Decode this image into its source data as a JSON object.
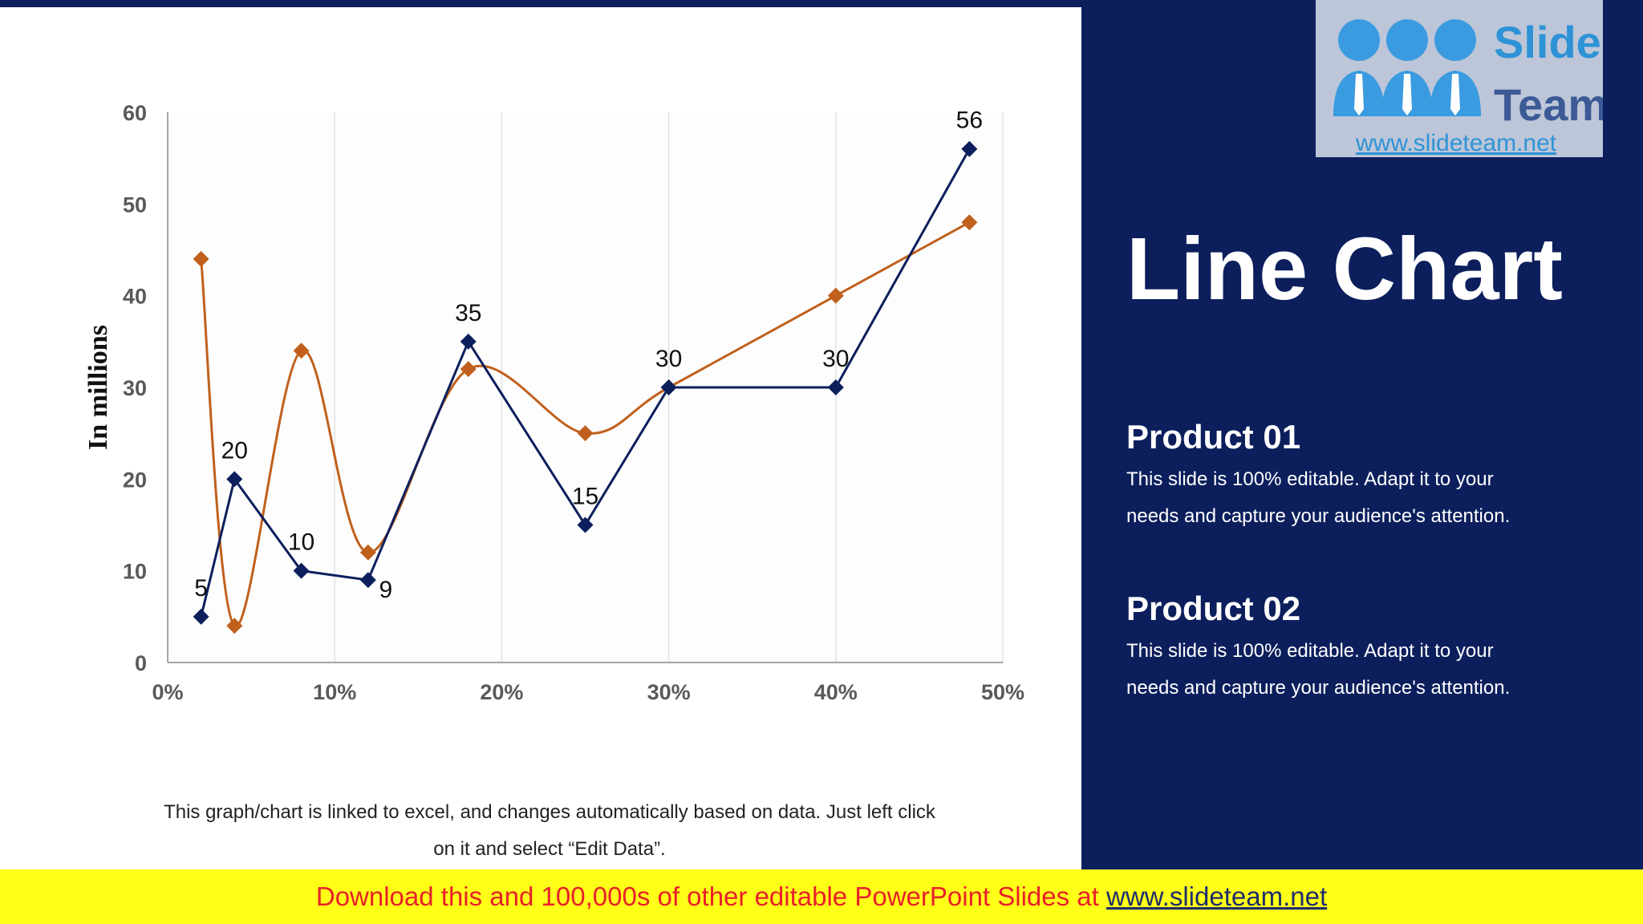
{
  "slide": {
    "title": "Line Chart",
    "note_line1": "This graph/chart is linked to excel, and changes automatically based on data. Just left click",
    "note_line2": "on it and select “Edit Data”.",
    "footer_text": "Download this and 100,000s of other editable PowerPoint Slides at ",
    "footer_link": "www.slideteam.net"
  },
  "logo": {
    "word1": "Slide",
    "word2": "Team",
    "url": "www.slideteam.net"
  },
  "products": [
    {
      "title": "Product 01",
      "line1": "This slide is 100% editable. Adapt it to your",
      "line2": "needs and capture your audience's attention."
    },
    {
      "title": "Product 02",
      "line1": "This slide is 100% editable. Adapt it to your",
      "line2": "needs and capture your audience's attention."
    }
  ],
  "colors": {
    "navy": "#0c1f5c",
    "orange": "#c0601c",
    "yellow": "#ffff18",
    "footer_red": "#e8202a"
  },
  "chart_data": {
    "type": "scatter",
    "title": "",
    "xlabel": "",
    "ylabel": "In millions",
    "xlim": [
      0,
      0.5
    ],
    "ylim": [
      0,
      60
    ],
    "x_ticks": [
      "0%",
      "10%",
      "20%",
      "30%",
      "40%",
      "50%"
    ],
    "y_ticks": [
      "0",
      "10",
      "20",
      "30",
      "40",
      "50",
      "60"
    ],
    "grid": "vertical",
    "legend": "none",
    "series": [
      {
        "color": "#0c1f5c",
        "line": "straight",
        "marker": "diamond",
        "show_labels": true,
        "points": [
          {
            "x": 0.02,
            "y": 5
          },
          {
            "x": 0.04,
            "y": 20
          },
          {
            "x": 0.08,
            "y": 10
          },
          {
            "x": 0.12,
            "y": 9
          },
          {
            "x": 0.18,
            "y": 35
          },
          {
            "x": 0.25,
            "y": 15
          },
          {
            "x": 0.3,
            "y": 30
          },
          {
            "x": 0.4,
            "y": 30
          },
          {
            "x": 0.48,
            "y": 56
          }
        ]
      },
      {
        "color": "#c0601c",
        "line": "smooth",
        "marker": "diamond",
        "show_labels": false,
        "points": [
          {
            "x": 0.02,
            "y": 44
          },
          {
            "x": 0.04,
            "y": 4
          },
          {
            "x": 0.08,
            "y": 34
          },
          {
            "x": 0.12,
            "y": 12
          },
          {
            "x": 0.18,
            "y": 32
          },
          {
            "x": 0.25,
            "y": 25
          },
          {
            "x": 0.3,
            "y": 30
          },
          {
            "x": 0.4,
            "y": 40
          },
          {
            "x": 0.48,
            "y": 48
          }
        ]
      }
    ]
  }
}
